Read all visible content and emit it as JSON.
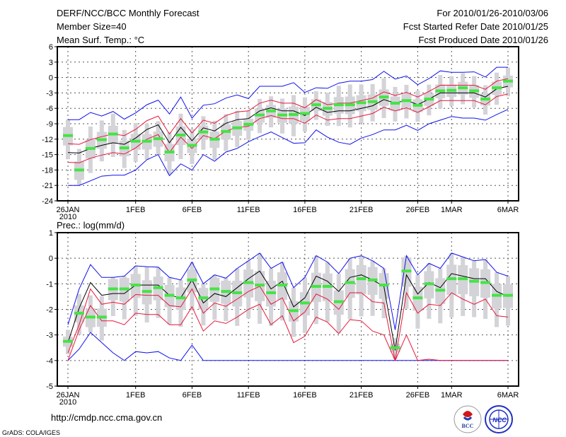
{
  "header": {
    "title": "DERF/NCC/BCC Monthly Forecast",
    "member_size": "Member Size=40",
    "variable": "Mean Surf. Temp.: °C",
    "period": "For 2010/01/26-2010/03/06",
    "start_date": "Fcst Started Refer Date 2010/01/25",
    "produced_date": "Fcst Produced Date 2010/01/26"
  },
  "footer": {
    "url": "http://cmdp.ncc.cma.gov.cn",
    "credit": "GrADS: COLA/IGES",
    "logo_bcc": "BCC",
    "logo_ncc": "NCC"
  },
  "colors": {
    "mean": "#000000",
    "sd": "#e8173a",
    "extreme": "#1010ee",
    "marker": "#44e444",
    "box": "#d3d3d8",
    "grid": "#555555"
  },
  "chart_data": [
    {
      "type": "line",
      "title": "Mean Surf. Temp.: °C",
      "ylabel": "°C",
      "ylim": [
        -24,
        6
      ],
      "yticks": [
        6,
        3,
        0,
        -3,
        -6,
        -9,
        -12,
        -15,
        -18,
        -21,
        -24
      ],
      "ytick_labels": [
        "6",
        "3",
        "0",
        "-3",
        "-6",
        "-9",
        "-12",
        "-15",
        "-18",
        "-21",
        "-24"
      ],
      "xticks": [
        {
          "day": 0,
          "label": "26JAN"
        },
        {
          "day": 6,
          "label": "1FEB"
        },
        {
          "day": 11,
          "label": "6FEB"
        },
        {
          "day": 16,
          "label": "11FEB"
        },
        {
          "day": 21,
          "label": "16FEB"
        },
        {
          "day": 26,
          "label": "21FEB"
        },
        {
          "day": 31,
          "label": "26FEB"
        },
        {
          "day": 34,
          "label": "1MAR"
        },
        {
          "day": 39,
          "label": "6MAR"
        }
      ],
      "year_label": "2010",
      "grid": true,
      "series": {
        "mean": [
          -14.6,
          -14.7,
          -13.8,
          -13.2,
          -12.7,
          -13.0,
          -11.8,
          -10.1,
          -9.2,
          -12.7,
          -9.7,
          -12.3,
          -9.8,
          -10.4,
          -8.9,
          -8.2,
          -8.0,
          -6.5,
          -5.9,
          -6.5,
          -6.5,
          -7.4,
          -5.8,
          -6.8,
          -6.5,
          -6.5,
          -6.0,
          -5.5,
          -4.3,
          -5.0,
          -4.4,
          -5.3,
          -4.2,
          -3.0,
          -3.0,
          -3.0,
          -3.0,
          -3.8,
          -2.2,
          -1.7
        ],
        "plus_sd": [
          -12.9,
          -13.0,
          -12.1,
          -11.5,
          -11.0,
          -11.3,
          -10.1,
          -8.4,
          -7.5,
          -11.0,
          -8.0,
          -10.8,
          -8.3,
          -8.9,
          -7.4,
          -6.7,
          -6.5,
          -5.0,
          -4.4,
          -5.0,
          -5.0,
          -5.9,
          -4.3,
          -5.3,
          -5.0,
          -5.0,
          -4.5,
          -4.0,
          -2.8,
          -3.5,
          -2.9,
          -3.8,
          -2.7,
          -1.5,
          -1.5,
          -1.5,
          -1.5,
          -2.3,
          -0.7,
          -0.2
        ],
        "minus_sd": [
          -16.5,
          -16.6,
          -15.7,
          -15.1,
          -14.6,
          -14.9,
          -13.7,
          -12.0,
          -11.1,
          -14.6,
          -11.6,
          -13.8,
          -11.3,
          -11.9,
          -10.4,
          -9.7,
          -9.5,
          -8.0,
          -7.4,
          -8.0,
          -8.0,
          -8.9,
          -7.3,
          -8.3,
          -8.0,
          -8.0,
          -7.5,
          -7.0,
          -5.8,
          -6.5,
          -5.9,
          -6.8,
          -5.7,
          -4.5,
          -4.5,
          -4.5,
          -4.5,
          -5.3,
          -3.7,
          -3.2
        ],
        "max": [
          -8.2,
          -8.2,
          -6.8,
          -7.5,
          -6.6,
          -8.1,
          -6.9,
          -5.3,
          -4.4,
          -7.1,
          -3.8,
          -7.9,
          -5.4,
          -5.1,
          -4.0,
          -3.4,
          -4.1,
          -1.7,
          -1.7,
          -1.7,
          -1.0,
          -2.9,
          -2.0,
          -2.1,
          -1.1,
          -0.7,
          -0.7,
          -0.4,
          1.2,
          -0.3,
          0.3,
          -1.4,
          -0.2,
          1.3,
          1.0,
          1.0,
          1.1,
          0.1,
          2.0,
          2.0
        ],
        "min": [
          -21,
          -21,
          -20.1,
          -19.2,
          -19,
          -19,
          -18,
          -16,
          -15,
          -19.1,
          -16.8,
          -18,
          -15,
          -16.3,
          -14.5,
          -13.8,
          -12.5,
          -11.5,
          -10.6,
          -11.7,
          -12.8,
          -12.7,
          -10.2,
          -11.6,
          -12.6,
          -13.0,
          -11.8,
          -11.1,
          -10.2,
          -10.2,
          -9.3,
          -10.3,
          -9.0,
          -8.3,
          -7.6,
          -7.9,
          -7.9,
          -8.3,
          -7.2,
          -6.2
        ],
        "marker": [
          -11.3,
          -18,
          -13.8,
          -12.1,
          -11,
          -13.7,
          -12.4,
          -12.4,
          -11.9,
          -14.5,
          -11.2,
          -13.2,
          -10.6,
          -12,
          -10.5,
          -9.8,
          -9.1,
          -7.3,
          -6.5,
          -7.3,
          -7.2,
          -7.0,
          -5.3,
          -6.0,
          -5.3,
          -5.3,
          -4.9,
          -4.7,
          -3.8,
          -5.0,
          -4.5,
          -5.4,
          -4.2,
          -2.6,
          -2.5,
          -2.0,
          -2.6,
          -4.2,
          -2.0,
          -0.7
        ]
      }
    },
    {
      "type": "line",
      "title": "Prec.: log(mm/d)",
      "ylabel": "log(mm/d)",
      "ylim": [
        -5,
        1
      ],
      "yticks": [
        1,
        0,
        -1,
        -2,
        -3,
        -4,
        -5
      ],
      "ytick_labels": [
        "1",
        "0",
        "-1",
        "-2",
        "-3",
        "-4",
        "-5"
      ],
      "xticks": [
        {
          "day": 0,
          "label": "26JAN"
        },
        {
          "day": 6,
          "label": "1FEB"
        },
        {
          "day": 11,
          "label": "6FEB"
        },
        {
          "day": 16,
          "label": "11FEB"
        },
        {
          "day": 21,
          "label": "16FEB"
        },
        {
          "day": 26,
          "label": "21FEB"
        },
        {
          "day": 31,
          "label": "26FEB"
        },
        {
          "day": 34,
          "label": "1MAR"
        },
        {
          "day": 39,
          "label": "6MAR"
        }
      ],
      "year_label": "2010",
      "grid": true,
      "series": {
        "mean": [
          -3.3,
          -1.95,
          -0.95,
          -1.45,
          -1.38,
          -1.38,
          -1.05,
          -1.05,
          -1.05,
          -1.45,
          -1.55,
          -0.85,
          -1.75,
          -1.38,
          -1.5,
          -1.15,
          -0.8,
          -0.5,
          -1.2,
          -0.9,
          -1.9,
          -1.55,
          -0.7,
          -0.9,
          -1.3,
          -0.75,
          -0.65,
          -0.85,
          -1.1,
          -3.6,
          -0.65,
          -1.4,
          -0.95,
          -1.15,
          -0.6,
          -0.7,
          -0.8,
          -0.8,
          -1.3,
          -1.5
        ],
        "plus_sd": [
          -3.7,
          -2.6,
          -1.2,
          -1.8,
          -1.72,
          -1.8,
          -1.42,
          -1.45,
          -1.45,
          -1.85,
          -1.9,
          -1.2,
          -2.15,
          -1.75,
          -1.88,
          -1.6,
          -1.3,
          -1.1,
          -1.8,
          -1.55,
          -2.45,
          -2.1,
          -1.4,
          -1.6,
          -2.0,
          -1.35,
          -1.35,
          -1.7,
          -1.75,
          -4.0,
          -1.35,
          -2.15,
          -1.8,
          -1.85,
          -1.35,
          -1.6,
          -1.8,
          -1.6,
          -2.25,
          -2.3
        ],
        "minus_sd": [
          -4.0,
          -2.8,
          -1.85,
          -2.45,
          -2.45,
          -2.6,
          -2.15,
          -2.2,
          -2.2,
          -2.6,
          -2.6,
          -1.9,
          -2.85,
          -2.45,
          -2.55,
          -2.3,
          -2.0,
          -1.8,
          -2.6,
          -2.25,
          -3.3,
          -3.05,
          -2.3,
          -2.5,
          -2.95,
          -2.4,
          -2.45,
          -2.85,
          -3.0,
          -4.0,
          -3.0,
          -4.0,
          -3.95,
          -4.0,
          -4.0,
          -4.0,
          -4.0,
          -4.0,
          -4.0,
          -4.0
        ],
        "max": [
          -2.6,
          -1.2,
          -0.25,
          -0.75,
          -0.75,
          -0.7,
          -0.3,
          -0.33,
          -0.35,
          -0.75,
          -0.85,
          -0.15,
          -1.0,
          -0.65,
          -0.78,
          -0.4,
          -0.1,
          0.2,
          -0.4,
          -0.15,
          -1.15,
          -0.75,
          0.1,
          -0.15,
          -0.6,
          0.0,
          0.1,
          -0.1,
          -0.4,
          -2.8,
          0.1,
          -0.65,
          -0.2,
          -0.4,
          0.2,
          0.05,
          -0.1,
          -0.05,
          -0.55,
          -0.7
        ],
        "min": [
          -4,
          -3.55,
          -2.9,
          -3.3,
          -3.7,
          -4,
          -3.65,
          -3.7,
          -3.65,
          -3.9,
          -4,
          -3.4,
          -4,
          -4,
          -4,
          -4,
          -4,
          -4,
          -4,
          -4,
          -4,
          -4,
          -4,
          -4,
          -4,
          -4,
          -4,
          -4,
          -4,
          -4,
          -4,
          -4,
          -4,
          -4,
          -4,
          -4,
          -4,
          -4,
          -4,
          -4
        ],
        "marker": [
          -3.25,
          -2.15,
          -2.3,
          -2.3,
          -1.2,
          -1.2,
          -1.05,
          -1.3,
          -1.15,
          -1.45,
          -1.55,
          -0.85,
          -1.55,
          -1.2,
          -1.3,
          -1.35,
          -0.95,
          -1.05,
          -1.35,
          -1.05,
          -2.05,
          -1.75,
          -1.1,
          -1.1,
          -1.7,
          -0.95,
          -0.8,
          -0.85,
          -1.05,
          -3.5,
          -0.5,
          -1.55,
          -1.0,
          -1.25,
          -0.8,
          -0.8,
          -0.9,
          -0.95,
          -1.45,
          -1.45
        ]
      }
    }
  ]
}
